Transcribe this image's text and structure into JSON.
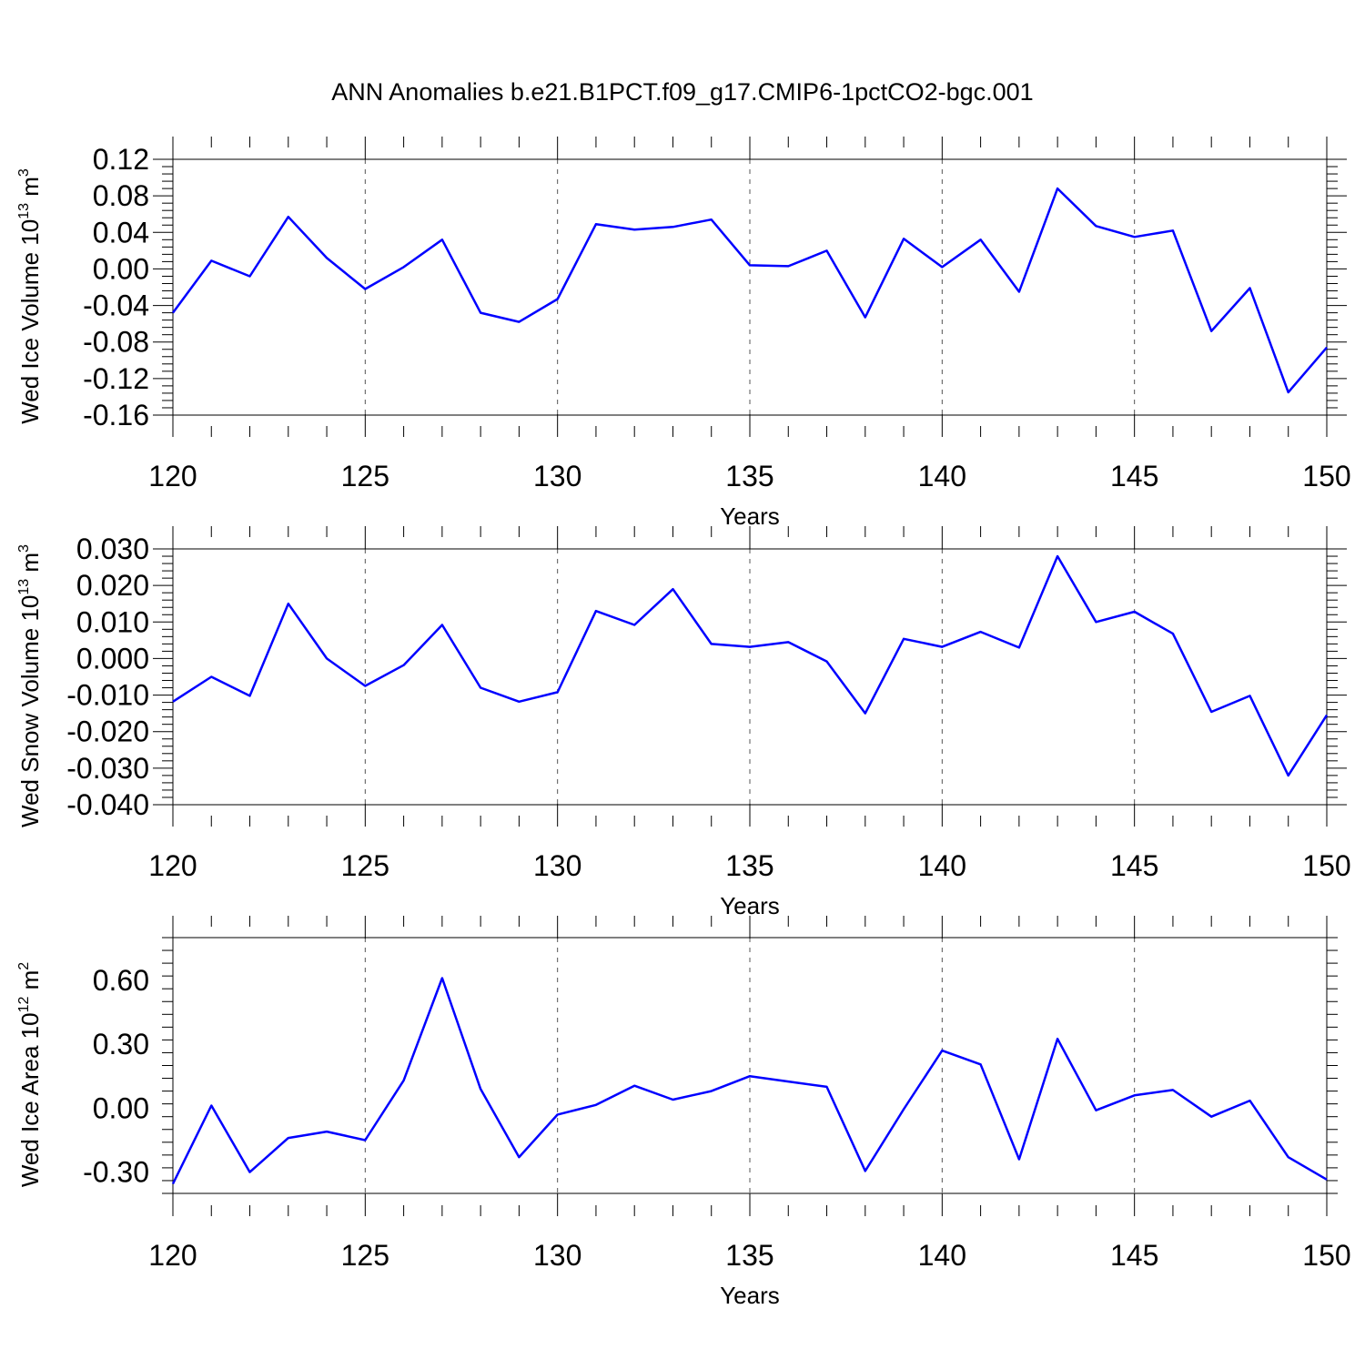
{
  "figure": {
    "title": "ANN Anomalies b.e21.B1PCT.f09_g17.CMIP6-1pctCO2-bgc.001"
  },
  "chart_data": [
    {
      "type": "line",
      "xlabel": "Years",
      "ylabel": "Wed Ice Volume 10",
      "ylabel_exp": "13",
      "ylabel_unit": " m",
      "ylabel_unit_exp": "3",
      "xlim": [
        120,
        150
      ],
      "ylim": [
        -0.16,
        0.12
      ],
      "xticks": [
        120,
        125,
        130,
        135,
        140,
        145,
        150
      ],
      "xtick_labels": [
        "120",
        "125",
        "130",
        "135",
        "140",
        "145",
        "150"
      ],
      "yticks": [
        -0.16,
        -0.12,
        -0.08,
        -0.04,
        0.0,
        0.04,
        0.08,
        0.12
      ],
      "ytick_labels": [
        "-0.16",
        "-0.12",
        "-0.08",
        "-0.04",
        "0.00",
        "0.04",
        "0.08",
        "0.12"
      ],
      "grid": "vertical dashed at major x ticks",
      "series": [
        {
          "color": "#0000ff",
          "x": [
            120,
            121,
            122,
            123,
            124,
            125,
            126,
            127,
            128,
            129,
            130,
            131,
            132,
            133,
            134,
            135,
            136,
            137,
            138,
            139,
            140,
            141,
            142,
            143,
            144,
            145,
            146,
            147,
            148,
            149,
            150
          ],
          "values": [
            -0.048,
            0.009,
            -0.008,
            0.057,
            0.012,
            -0.022,
            0.002,
            0.032,
            -0.048,
            -0.058,
            -0.033,
            0.049,
            0.043,
            0.046,
            0.054,
            0.004,
            0.003,
            0.02,
            -0.053,
            0.033,
            0.002,
            0.032,
            -0.025,
            0.088,
            0.047,
            0.035,
            0.042,
            -0.068,
            -0.021,
            -0.135,
            -0.086
          ]
        }
      ]
    },
    {
      "type": "line",
      "xlabel": "Years",
      "ylabel": "Wed Snow Volume 10",
      "ylabel_exp": "13",
      "ylabel_unit": " m",
      "ylabel_unit_exp": "3",
      "xlim": [
        120,
        150
      ],
      "ylim": [
        -0.04,
        0.03
      ],
      "xticks": [
        120,
        125,
        130,
        135,
        140,
        145,
        150
      ],
      "xtick_labels": [
        "120",
        "125",
        "130",
        "135",
        "140",
        "145",
        "150"
      ],
      "yticks": [
        -0.04,
        -0.03,
        -0.02,
        -0.01,
        0.0,
        0.01,
        0.02,
        0.03
      ],
      "ytick_labels": [
        "-0.040",
        "-0.030",
        "-0.020",
        "-0.010",
        "0.000",
        "0.010",
        "0.020",
        "0.030"
      ],
      "grid": "vertical dashed at major x ticks",
      "series": [
        {
          "color": "#0000ff",
          "x": [
            120,
            121,
            122,
            123,
            124,
            125,
            126,
            127,
            128,
            129,
            130,
            131,
            132,
            133,
            134,
            135,
            136,
            137,
            138,
            139,
            140,
            141,
            142,
            143,
            144,
            145,
            146,
            147,
            148,
            149,
            150
          ],
          "values": [
            -0.0118,
            -0.005,
            -0.0102,
            0.015,
            0.0,
            -0.0075,
            -0.0018,
            0.0092,
            -0.008,
            -0.0118,
            -0.0092,
            0.013,
            0.0092,
            0.019,
            0.004,
            0.0032,
            0.0045,
            -0.0008,
            -0.015,
            0.0054,
            0.0032,
            0.0073,
            0.003,
            0.028,
            0.01,
            0.0128,
            0.0068,
            -0.0146,
            -0.0102,
            -0.032,
            -0.0155
          ]
        }
      ]
    },
    {
      "type": "line",
      "xlabel": "Years",
      "ylabel": "Wed Ice Area 10",
      "ylabel_exp": "12",
      "ylabel_unit": " m",
      "ylabel_unit_exp": "2",
      "xlim": [
        120,
        150
      ],
      "ylim": [
        -0.4,
        0.8
      ],
      "xticks": [
        120,
        125,
        130,
        135,
        140,
        145,
        150
      ],
      "xtick_labels": [
        "120",
        "125",
        "130",
        "135",
        "140",
        "145",
        "150"
      ],
      "yticks": [
        -0.3,
        0.0,
        0.3,
        0.6
      ],
      "ytick_labels": [
        "-0.30",
        "0.00",
        "0.30",
        "0.60"
      ],
      "grid": "vertical dashed at major x ticks",
      "series": [
        {
          "color": "#0000ff",
          "x": [
            120,
            121,
            122,
            123,
            124,
            125,
            126,
            127,
            128,
            129,
            130,
            131,
            132,
            133,
            134,
            135,
            136,
            137,
            138,
            139,
            140,
            141,
            142,
            143,
            144,
            145,
            146,
            147,
            148,
            149,
            150
          ],
          "values": [
            -0.355,
            0.012,
            -0.3,
            -0.14,
            -0.11,
            -0.15,
            0.13,
            0.61,
            0.09,
            -0.23,
            -0.03,
            0.015,
            0.105,
            0.04,
            0.08,
            0.15,
            0.125,
            0.1,
            -0.295,
            -0.005,
            0.27,
            0.205,
            -0.24,
            0.325,
            -0.01,
            0.06,
            0.085,
            -0.04,
            0.035,
            -0.23,
            -0.335
          ]
        }
      ]
    }
  ]
}
